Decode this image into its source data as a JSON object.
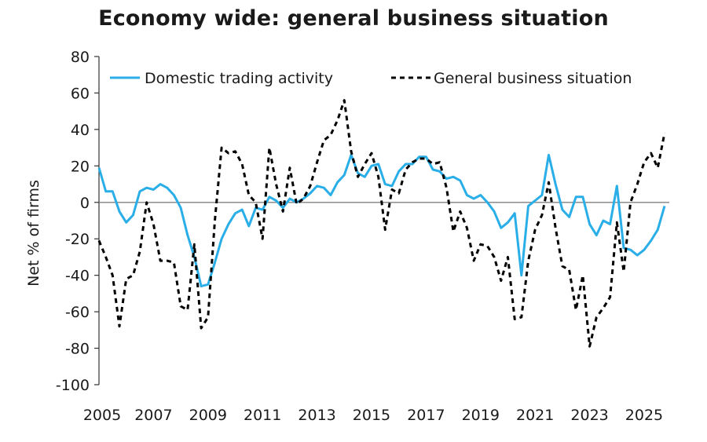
{
  "chart_data": {
    "type": "line",
    "title": "Economy wide: general business situation",
    "xlabel": "",
    "ylabel": "Net % of firms",
    "xlim": [
      2005.0,
      2025.75
    ],
    "ylim": [
      -100,
      80
    ],
    "yticks": [
      80,
      60,
      40,
      20,
      0,
      -20,
      -40,
      -60,
      -80,
      -100
    ],
    "xticks": [
      2005,
      2007,
      2009,
      2011,
      2013,
      2015,
      2017,
      2019,
      2021,
      2023,
      2025
    ],
    "legend_position": "top",
    "colors": {
      "domestic": "#2aaee8",
      "general": "#000000",
      "zero_line": "#808080"
    },
    "series": [
      {
        "name": "Domestic trading activity",
        "style": "solid",
        "points": [
          [
            2005.0,
            19
          ],
          [
            2005.25,
            6
          ],
          [
            2005.5,
            6
          ],
          [
            2005.75,
            -5
          ],
          [
            2006.0,
            -11
          ],
          [
            2006.25,
            -7
          ],
          [
            2006.5,
            6
          ],
          [
            2006.75,
            8
          ],
          [
            2007.0,
            7
          ],
          [
            2007.25,
            10
          ],
          [
            2007.5,
            8
          ],
          [
            2007.75,
            4
          ],
          [
            2008.0,
            -3
          ],
          [
            2008.25,
            -18
          ],
          [
            2008.5,
            -30
          ],
          [
            2008.75,
            -46
          ],
          [
            2009.0,
            -45
          ],
          [
            2009.25,
            -33
          ],
          [
            2009.5,
            -20
          ],
          [
            2009.75,
            -12
          ],
          [
            2010.0,
            -6
          ],
          [
            2010.25,
            -4
          ],
          [
            2010.5,
            -13
          ],
          [
            2010.75,
            -3
          ],
          [
            2011.0,
            -4
          ],
          [
            2011.25,
            3
          ],
          [
            2011.5,
            1
          ],
          [
            2011.75,
            -3
          ],
          [
            2012.0,
            2
          ],
          [
            2012.25,
            0
          ],
          [
            2012.5,
            2
          ],
          [
            2012.75,
            5
          ],
          [
            2013.0,
            9
          ],
          [
            2013.25,
            8
          ],
          [
            2013.5,
            4
          ],
          [
            2013.75,
            11
          ],
          [
            2014.0,
            15
          ],
          [
            2014.25,
            26
          ],
          [
            2014.5,
            16
          ],
          [
            2014.75,
            14
          ],
          [
            2015.0,
            20
          ],
          [
            2015.25,
            21
          ],
          [
            2015.5,
            10
          ],
          [
            2015.75,
            9
          ],
          [
            2016.0,
            17
          ],
          [
            2016.25,
            21
          ],
          [
            2016.5,
            21
          ],
          [
            2016.75,
            25
          ],
          [
            2017.0,
            25
          ],
          [
            2017.25,
            18
          ],
          [
            2017.5,
            17
          ],
          [
            2017.75,
            13
          ],
          [
            2018.0,
            14
          ],
          [
            2018.25,
            12
          ],
          [
            2018.5,
            4
          ],
          [
            2018.75,
            2
          ],
          [
            2019.0,
            4
          ],
          [
            2019.25,
            0
          ],
          [
            2019.5,
            -5
          ],
          [
            2019.75,
            -14
          ],
          [
            2020.0,
            -11
          ],
          [
            2020.25,
            -6
          ],
          [
            2020.5,
            -40
          ],
          [
            2020.75,
            -2
          ],
          [
            2021.0,
            1
          ],
          [
            2021.25,
            4
          ],
          [
            2021.5,
            26
          ],
          [
            2021.75,
            10
          ],
          [
            2022.0,
            -4
          ],
          [
            2022.25,
            -8
          ],
          [
            2022.5,
            3
          ],
          [
            2022.75,
            3
          ],
          [
            2023.0,
            -12
          ],
          [
            2023.25,
            -18
          ],
          [
            2023.5,
            -10
          ],
          [
            2023.75,
            -12
          ],
          [
            2024.0,
            9
          ],
          [
            2024.25,
            -25
          ],
          [
            2024.5,
            -26
          ],
          [
            2024.75,
            -29
          ],
          [
            2025.0,
            -26
          ],
          [
            2025.25,
            -21
          ],
          [
            2025.5,
            -15
          ],
          [
            2025.75,
            -2
          ]
        ]
      },
      {
        "name": "General business situation",
        "style": "dashed",
        "points": [
          [
            2005.0,
            -21
          ],
          [
            2005.25,
            -30
          ],
          [
            2005.5,
            -40
          ],
          [
            2005.75,
            -68
          ],
          [
            2006.0,
            -42
          ],
          [
            2006.25,
            -40
          ],
          [
            2006.5,
            -27
          ],
          [
            2006.75,
            0
          ],
          [
            2007.0,
            -12
          ],
          [
            2007.25,
            -32
          ],
          [
            2007.5,
            -32
          ],
          [
            2007.75,
            -33
          ],
          [
            2008.0,
            -57
          ],
          [
            2008.25,
            -59
          ],
          [
            2008.5,
            -23
          ],
          [
            2008.75,
            -69
          ],
          [
            2009.0,
            -63
          ],
          [
            2009.25,
            -10
          ],
          [
            2009.5,
            30
          ],
          [
            2009.75,
            27
          ],
          [
            2010.0,
            28
          ],
          [
            2010.25,
            21
          ],
          [
            2010.5,
            4
          ],
          [
            2010.75,
            0
          ],
          [
            2011.0,
            -20
          ],
          [
            2011.25,
            30
          ],
          [
            2011.5,
            10
          ],
          [
            2011.75,
            -5
          ],
          [
            2012.0,
            19
          ],
          [
            2012.25,
            -1
          ],
          [
            2012.5,
            2
          ],
          [
            2012.75,
            9
          ],
          [
            2013.0,
            22
          ],
          [
            2013.25,
            34
          ],
          [
            2013.5,
            37
          ],
          [
            2013.75,
            45
          ],
          [
            2014.0,
            56
          ],
          [
            2014.25,
            28
          ],
          [
            2014.5,
            14
          ],
          [
            2014.75,
            21
          ],
          [
            2015.0,
            27
          ],
          [
            2015.25,
            14
          ],
          [
            2015.5,
            -15
          ],
          [
            2015.75,
            7
          ],
          [
            2016.0,
            5
          ],
          [
            2016.25,
            18
          ],
          [
            2016.5,
            22
          ],
          [
            2016.75,
            24
          ],
          [
            2017.0,
            24
          ],
          [
            2017.25,
            21
          ],
          [
            2017.5,
            22
          ],
          [
            2017.75,
            8
          ],
          [
            2018.0,
            -16
          ],
          [
            2018.25,
            -5
          ],
          [
            2018.5,
            -14
          ],
          [
            2018.75,
            -32
          ],
          [
            2019.0,
            -23
          ],
          [
            2019.25,
            -24
          ],
          [
            2019.5,
            -30
          ],
          [
            2019.75,
            -43
          ],
          [
            2020.0,
            -30
          ],
          [
            2020.25,
            -64
          ],
          [
            2020.5,
            -63
          ],
          [
            2020.75,
            -32
          ],
          [
            2021.0,
            -15
          ],
          [
            2021.25,
            -7
          ],
          [
            2021.5,
            11
          ],
          [
            2021.75,
            -14
          ],
          [
            2022.0,
            -35
          ],
          [
            2022.25,
            -37
          ],
          [
            2022.5,
            -59
          ],
          [
            2022.75,
            -40
          ],
          [
            2023.0,
            -79
          ],
          [
            2023.25,
            -63
          ],
          [
            2023.5,
            -58
          ],
          [
            2023.75,
            -52
          ],
          [
            2024.0,
            -11
          ],
          [
            2024.25,
            -38
          ],
          [
            2024.5,
            0
          ],
          [
            2024.75,
            10
          ],
          [
            2025.0,
            22
          ],
          [
            2025.25,
            27
          ],
          [
            2025.5,
            19
          ],
          [
            2025.75,
            38
          ]
        ]
      }
    ]
  }
}
